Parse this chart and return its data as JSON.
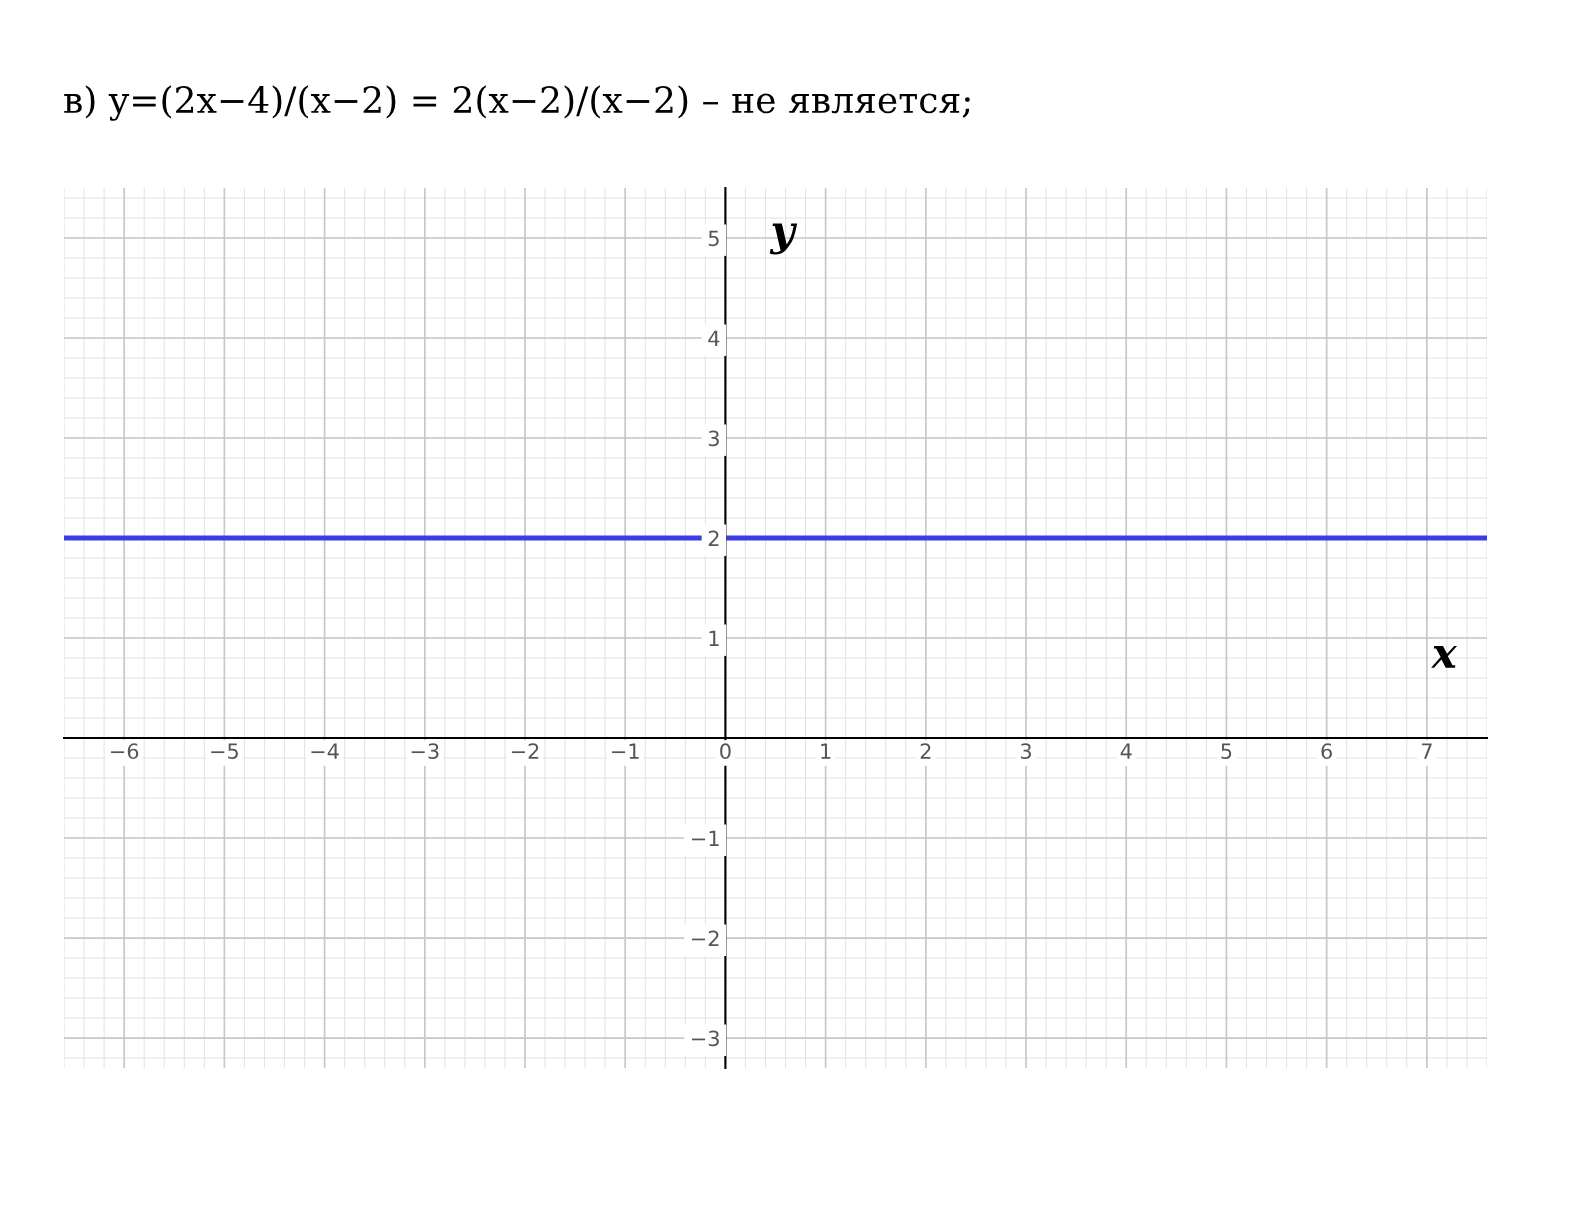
{
  "chart_data": {
    "type": "line",
    "title": "в) y=(2x−4)/(x−2) = 2(x−2)/(x−2) – не является;",
    "xlabel": "x",
    "ylabel": "y",
    "x": [
      -6.6,
      7.6
    ],
    "series": [
      {
        "color": "#3c3ce6",
        "values": [
          2,
          2
        ]
      }
    ],
    "xlim": [
      -6.6,
      7.6
    ],
    "ylim": [
      -3.3,
      5.5
    ],
    "xticks": [
      -6,
      -5,
      -4,
      -3,
      -2,
      -1,
      0,
      1,
      2,
      3,
      4,
      5,
      6,
      7
    ],
    "yticks": [
      -3,
      -2,
      -1,
      1,
      2,
      3,
      4,
      5
    ],
    "grid": true,
    "marker": "none",
    "line_style": "solid"
  }
}
